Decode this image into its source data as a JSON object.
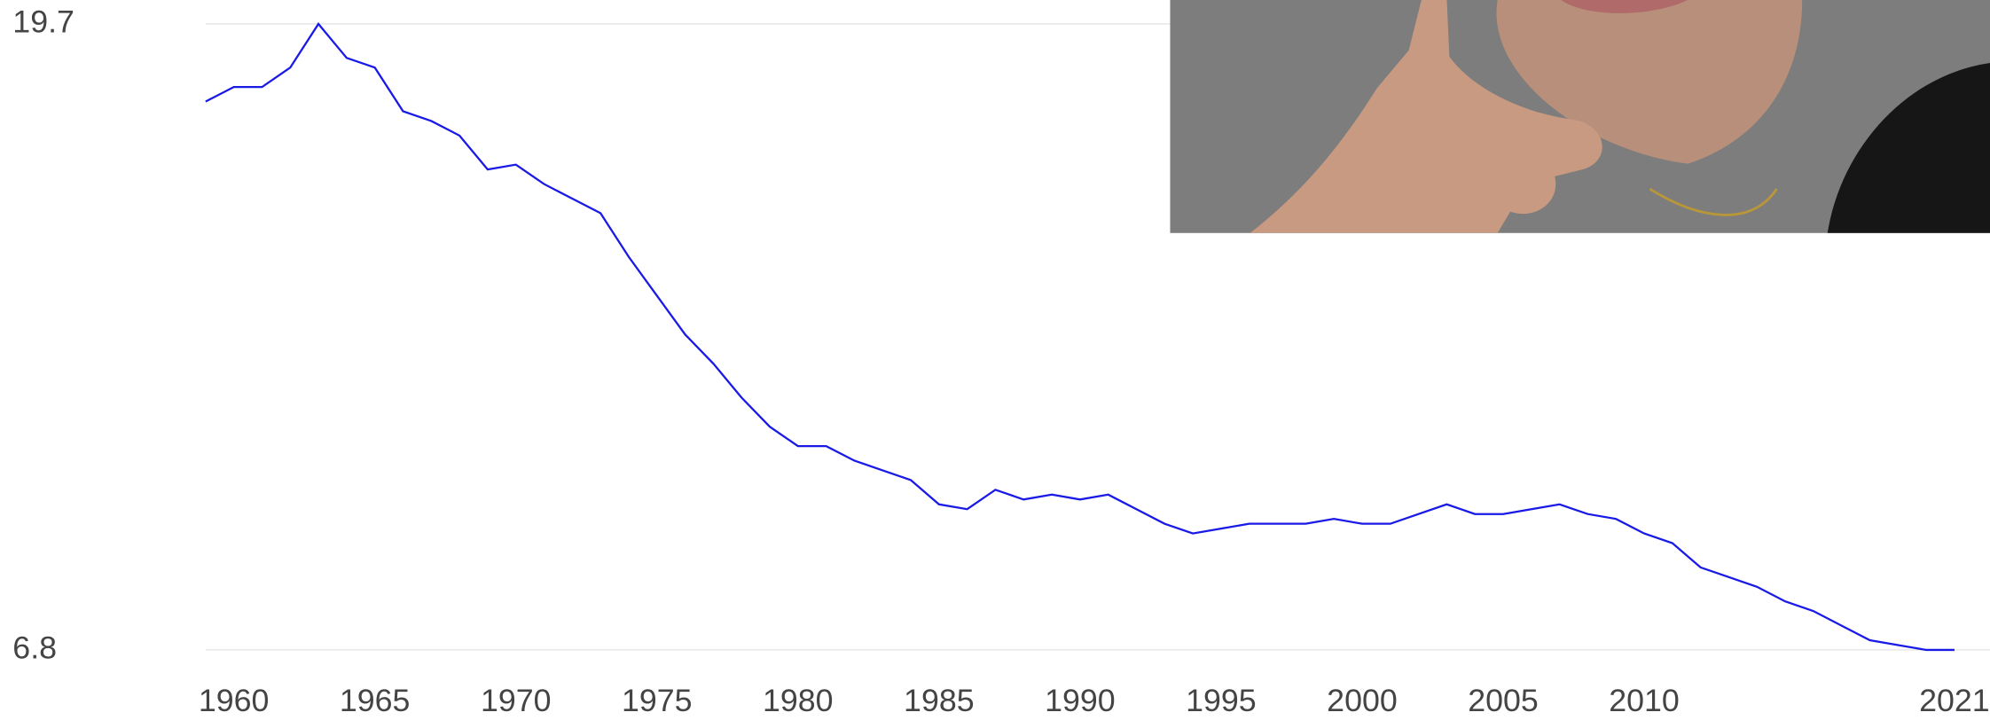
{
  "chart_data": {
    "type": "line",
    "x": [
      1959,
      1960,
      1961,
      1962,
      1963,
      1964,
      1965,
      1966,
      1967,
      1968,
      1969,
      1970,
      1971,
      1972,
      1973,
      1974,
      1975,
      1976,
      1977,
      1978,
      1979,
      1980,
      1981,
      1982,
      1983,
      1984,
      1985,
      1986,
      1987,
      1988,
      1989,
      1990,
      1991,
      1992,
      1993,
      1994,
      1995,
      1996,
      1997,
      1998,
      1999,
      2000,
      2001,
      2002,
      2003,
      2004,
      2005,
      2006,
      2007,
      2008,
      2009,
      2010,
      2011,
      2012,
      2013,
      2014,
      2015,
      2016,
      2017,
      2018,
      2019,
      2020,
      2021
    ],
    "values": [
      18.1,
      18.4,
      18.4,
      18.8,
      19.7,
      19.0,
      18.8,
      17.9,
      17.7,
      17.4,
      16.7,
      16.8,
      16.4,
      16.1,
      15.8,
      14.9,
      14.1,
      13.3,
      12.7,
      12.0,
      11.4,
      11.0,
      11.0,
      10.7,
      10.5,
      10.3,
      9.8,
      9.7,
      10.1,
      9.9,
      10.0,
      9.9,
      10.0,
      9.7,
      9.4,
      9.2,
      9.3,
      9.4,
      9.4,
      9.4,
      9.5,
      9.4,
      9.4,
      9.6,
      9.8,
      9.6,
      9.6,
      9.7,
      9.8,
      9.6,
      9.5,
      9.2,
      9.0,
      8.5,
      8.3,
      8.1,
      7.8,
      7.6,
      7.3,
      7.0,
      6.9,
      6.8,
      6.8
    ],
    "color": "#1a1ae6",
    "xlim": [
      1959,
      2021
    ],
    "xticks": [
      1960,
      1965,
      1970,
      1975,
      1980,
      1985,
      1990,
      1995,
      2000,
      2005,
      2010,
      2021
    ],
    "ylim": [
      6.8,
      19.7
    ],
    "yticks": [
      6.8,
      19.7
    ],
    "grid": true
  }
}
